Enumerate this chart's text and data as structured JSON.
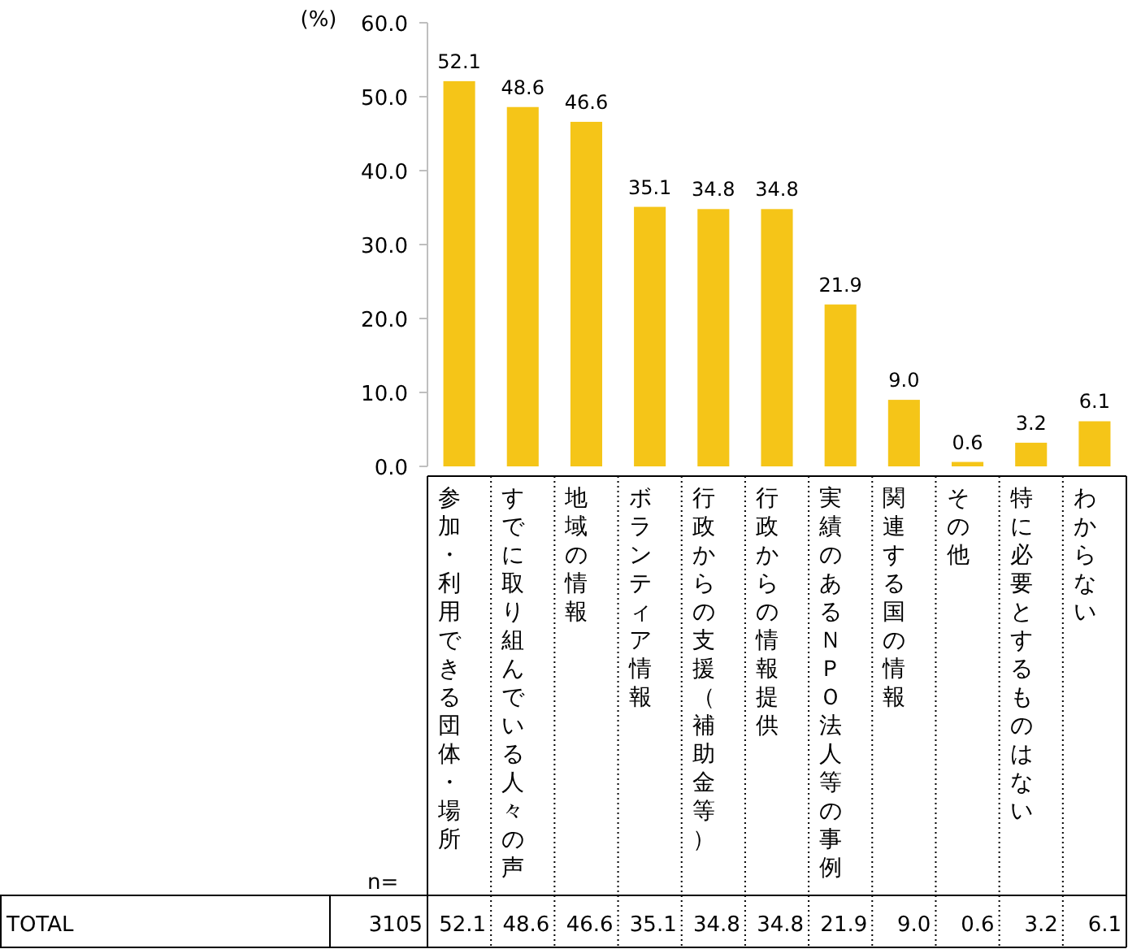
{
  "chart_data": {
    "type": "bar",
    "ylabel": "(%)",
    "categories": [
      "参加・利用できる団体・場所",
      "すでに取り組んでいる人々の声",
      "地域の情報",
      "ボランティア情報",
      "行政からの支援（補助金等）",
      "行政からの情報提供",
      "実績のあるＮＰＯ法人等の事例",
      "関連する国の情報",
      "その他",
      "特に必要とするものはない",
      "わからない"
    ],
    "values": [
      52.1,
      48.6,
      46.6,
      35.1,
      34.8,
      34.8,
      21.9,
      9.0,
      0.6,
      3.2,
      6.1
    ],
    "color": "#f5c518",
    "ylim": [
      0,
      60
    ],
    "yticks": [
      {
        "value": 0,
        "label": "0.0"
      },
      {
        "value": 10,
        "label": "10.0"
      },
      {
        "value": 20,
        "label": "20.0"
      },
      {
        "value": 30,
        "label": "30.0"
      },
      {
        "value": 40,
        "label": "40.0"
      },
      {
        "value": 50,
        "label": "50.0"
      },
      {
        "value": 60,
        "label": "60.0"
      }
    ],
    "value_labels": [
      "52.1",
      "48.6",
      "46.6",
      "35.1",
      "34.8",
      "34.8",
      "21.9",
      "9.0",
      "0.6",
      "3.2",
      "6.1"
    ],
    "annotations": [
      "n=",
      "TOTAL",
      "3105"
    ]
  }
}
